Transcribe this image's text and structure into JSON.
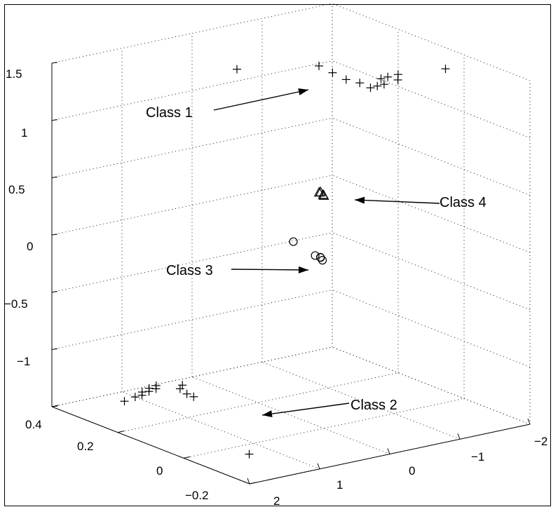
{
  "chart_data": {
    "type": "scatter3d",
    "title": "",
    "xlabel": "",
    "ylabel": "",
    "zlabel": "",
    "x_ticks": [
      "2",
      "1",
      "0",
      "−1",
      "−2"
    ],
    "y_ticks": [
      "0.4",
      "0.2",
      "0",
      "−0.2"
    ],
    "z_ticks": [
      "1.5",
      "1",
      "0.5",
      "0",
      "−0.5",
      "−1"
    ],
    "xlim": [
      -2,
      2
    ],
    "ylim": [
      -0.3,
      0.45
    ],
    "zlim": [
      -1.5,
      1.5
    ],
    "grid": true,
    "series": [
      {
        "name": "Class 1",
        "marker": "plus",
        "points": [
          [
            0.3,
            0.2,
            1.45
          ],
          [
            -0.4,
            0.1,
            1.5
          ],
          [
            -0.5,
            0.08,
            1.45
          ],
          [
            -0.6,
            0.06,
            1.4
          ],
          [
            -0.7,
            0.04,
            1.38
          ],
          [
            -0.9,
            0.05,
            1.3
          ],
          [
            -0.95,
            0.04,
            1.32
          ],
          [
            -1.0,
            0.03,
            1.34
          ],
          [
            -1.05,
            0.05,
            1.36
          ],
          [
            -1.1,
            0.04,
            1.38
          ],
          [
            -1.15,
            0.02,
            1.37
          ],
          [
            -1.2,
            0.03,
            1.4
          ],
          [
            -1.5,
            -0.05,
            1.5
          ]
        ]
      },
      {
        "name": "Class 2",
        "marker": "plus",
        "points": [
          [
            1.2,
            0.35,
            -1.5
          ],
          [
            1.0,
            0.36,
            -1.5
          ],
          [
            0.95,
            0.35,
            -1.48
          ],
          [
            0.9,
            0.36,
            -1.47
          ],
          [
            0.85,
            0.35,
            -1.46
          ],
          [
            0.8,
            0.36,
            -1.45
          ],
          [
            0.75,
            0.35,
            -1.45
          ],
          [
            0.7,
            0.36,
            -1.44
          ],
          [
            0.5,
            0.33,
            -1.46
          ],
          [
            0.45,
            0.32,
            -1.5
          ],
          [
            0.4,
            0.31,
            -1.52
          ],
          [
            0.42,
            0.34,
            -1.45
          ],
          [
            1.3,
            -0.05,
            -1.5
          ]
        ]
      },
      {
        "name": "Class 3",
        "marker": "circle",
        "points": [
          [
            0.05,
            0.0,
            0.0
          ],
          [
            0.0,
            0.01,
            -0.02
          ],
          [
            0.02,
            0.0,
            -0.03
          ],
          [
            0.03,
            0.02,
            -0.01
          ],
          [
            0.2,
            0.05,
            0.1
          ]
        ]
      },
      {
        "name": "Class 4",
        "marker": "triangle",
        "points": [
          [
            0.0,
            0.01,
            0.55
          ],
          [
            0.01,
            0.0,
            0.54
          ],
          [
            0.0,
            0.0,
            0.53
          ],
          [
            0.02,
            0.01,
            0.55
          ]
        ]
      }
    ],
    "annotations": [
      {
        "text": "Class 1"
      },
      {
        "text": "Class 4"
      },
      {
        "text": "Class 3"
      },
      {
        "text": "Class 2"
      }
    ]
  }
}
